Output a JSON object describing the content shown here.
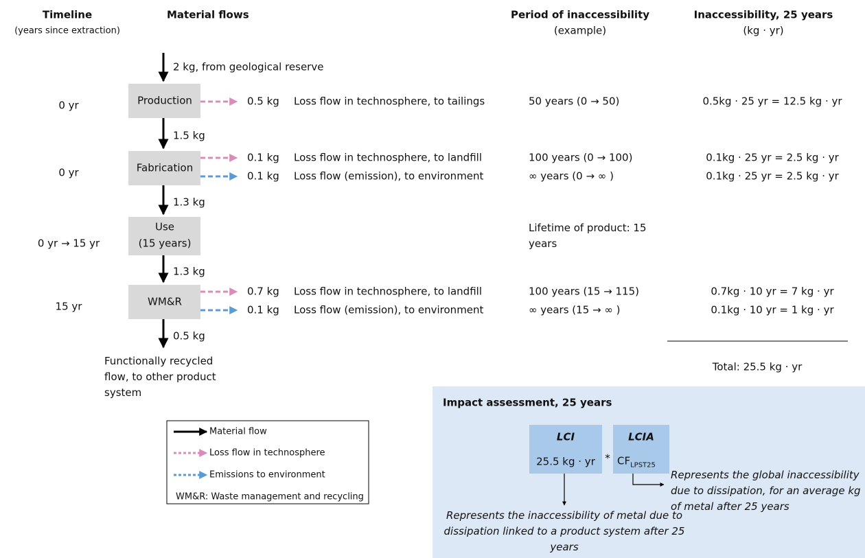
{
  "headers": {
    "timeline": "Timeline",
    "timeline_note": "(years since extraction)",
    "flows": "Material flows",
    "period": "Period of inaccessibility",
    "period_note": "(example)",
    "inaccessibility": "Inaccessibility, 25 years",
    "inaccessibility_unit": "(kg · yr)"
  },
  "input_flow": "2 kg, from geological reserve",
  "stages": [
    {
      "label": "Production",
      "time": "0 yr",
      "out_flow": "1.5 kg",
      "losses": [
        {
          "amount": "0.5 kg",
          "description": "Loss flow in technosphere, to tailings",
          "period": "50 years (0 → 50)",
          "inaccessibility": "0.5kg · 25 yr = 12.5 kg · yr",
          "color": "#d98cb8"
        }
      ]
    },
    {
      "label": "Fabrication",
      "time": "0 yr",
      "out_flow": "1.3 kg",
      "losses": [
        {
          "amount": "0.1 kg",
          "description": "Loss flow in technosphere, to landfill",
          "period": "100 years (0 → 100)",
          "inaccessibility": "0.1kg · 25 yr = 2.5 kg · yr",
          "color": "#d98cb8"
        },
        {
          "amount": "0.1 kg",
          "description": "Loss flow (emission), to environment",
          "period": "∞ years (0 → ∞ )",
          "inaccessibility": "0.1kg · 25 yr = 2.5 kg · yr",
          "color": "#5b9bd5"
        }
      ]
    },
    {
      "label": "Use",
      "label_note": "(15 years)",
      "time": "0 yr → 15 yr",
      "out_flow": "1.3 kg",
      "period": "Lifetime of product: 15 years",
      "losses": []
    },
    {
      "label": "WM&R",
      "time": "15 yr",
      "out_flow": "0.5 kg",
      "losses": [
        {
          "amount": "0.7 kg",
          "description": "Loss flow in technosphere, to landfill",
          "period": "100 years (15 → 115)",
          "inaccessibility": "0.7kg · 10 yr = 7 kg · yr",
          "color": "#d98cb8"
        },
        {
          "amount": "0.1 kg",
          "description": "Loss flow (emission), to environment",
          "period": "∞ years (15 → ∞ )",
          "inaccessibility": "0.1kg · 10 yr = 1 kg · yr",
          "color": "#5b9bd5"
        }
      ]
    }
  ],
  "output_flow": "Functionally recycled flow, to other product system",
  "total": "Total:  25.5 kg · yr",
  "legend": {
    "items": [
      {
        "label": "Material flow",
        "color": "#000000"
      },
      {
        "label": "Loss flow in technosphere",
        "color": "#d98cb8"
      },
      {
        "label": "Emissions to environment",
        "color": "#5b9bd5"
      }
    ],
    "note": "WM&R: Waste management and recycling"
  },
  "impact": {
    "title": "Impact assessment, 25 years",
    "lci": {
      "title": "LCI",
      "value": "25.5 kg · yr"
    },
    "operator": "*",
    "lcia": {
      "title": "LCIA",
      "cf": "CF",
      "cf_sub": "LPST25"
    },
    "lci_note": "Represents the inaccessibility of metal due to dissipation linked to a product system after 25 years",
    "lcia_note": "Represents the global inaccessibility due to dissipation, for an average kg of metal after 25 years"
  }
}
